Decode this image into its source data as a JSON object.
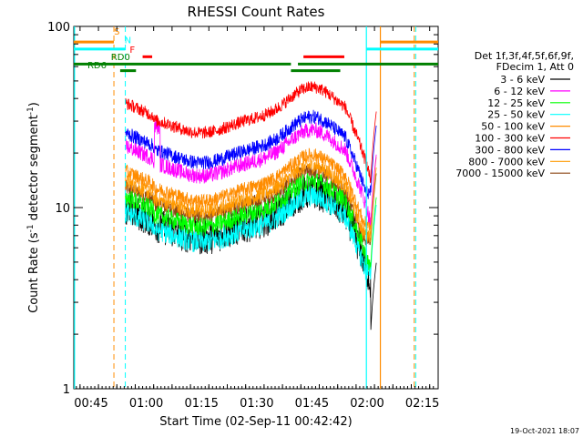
{
  "chart_data": {
    "type": "line",
    "title": "RHESSI Count Rates",
    "xlabel": "Start Time (02-Sep-11 00:42:42)",
    "ylabel": "Count Rate (s",
    "ylabel_sup1": "-1",
    "ylabel_mid": " detector segment",
    "ylabel_sup2": "-1",
    "ylabel_end": ")",
    "y_scale": "log",
    "ylim": [
      1,
      100
    ],
    "xlim_minutes_after_0042": [
      -1.7,
      97.3
    ],
    "x_ticks": [
      {
        "label": "00:45",
        "minutes": 3
      },
      {
        "label": "01:00",
        "minutes": 18
      },
      {
        "label": "01:15",
        "minutes": 33
      },
      {
        "label": "01:30",
        "minutes": 48
      },
      {
        "label": "01:45",
        "minutes": 63
      },
      {
        "label": "02:00",
        "minutes": 78
      },
      {
        "label": "02:15",
        "minutes": 93
      }
    ],
    "y_ticks": [
      {
        "label": "1",
        "value": 1
      },
      {
        "label": "10",
        "value": 10
      },
      {
        "label": "100",
        "value": 100
      }
    ],
    "legend_header": [
      "Det 1f,3f,4f,5f,6f,9f,",
      "FDecim 1, Att 0"
    ],
    "legend_position": "right",
    "series": [
      {
        "name": "3 - 6 keV",
        "color": "#000000"
      },
      {
        "name": "6 - 12 keV",
        "color": "#ff00ff"
      },
      {
        "name": "12 - 25 keV",
        "color": "#00ff00"
      },
      {
        "name": "25 - 50 keV",
        "color": "#00ffff"
      },
      {
        "name": "50 - 100 keV",
        "color": "#ff8c00"
      },
      {
        "name": "100 - 300 keV",
        "color": "#ff0000"
      },
      {
        "name": "300 - 800 keV",
        "color": "#0000ff"
      },
      {
        "name": "800 - 7000 keV",
        "color": "#ff9900"
      },
      {
        "name": "7000 - 15000 keV",
        "color": "#8b4513"
      }
    ],
    "flag_labels": [
      {
        "label": "S",
        "color": "#ff8c00"
      },
      {
        "label": "N",
        "color": "#00ffff"
      },
      {
        "label": "F",
        "color": "#ff0000"
      },
      {
        "label": "RD0",
        "color": "#008000"
      },
      {
        "label": "RD6",
        "color": "#008000"
      }
    ],
    "footer_date": "19-Oct-2021 18:07"
  }
}
